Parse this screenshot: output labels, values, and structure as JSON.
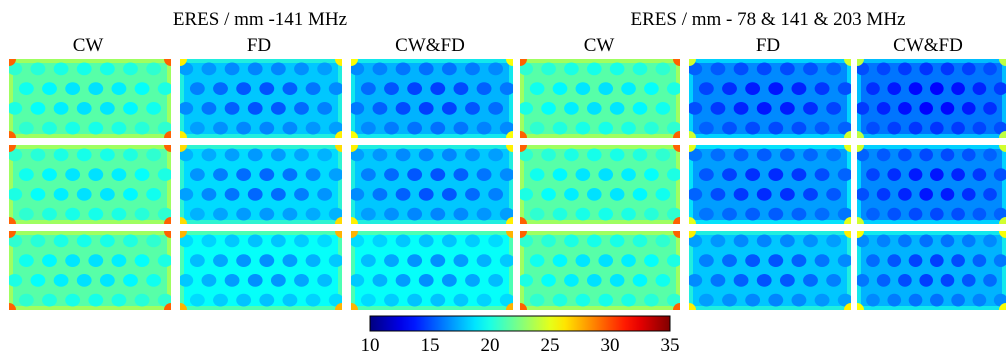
{
  "groups": [
    {
      "title": "ERES / mm -141 MHz",
      "columns": [
        "CW",
        "FD",
        "CW&FD"
      ],
      "mean_levels": [
        [
          21.5,
          18.0,
          17.5
        ],
        [
          21.5,
          18.5,
          18.0
        ],
        [
          21.5,
          19.5,
          19.5
        ]
      ]
    },
    {
      "title": "ERES / mm - 78 & 141 & 203 MHz",
      "columns": [
        "CW",
        "FD",
        "CW&FD"
      ],
      "mean_levels": [
        [
          21.5,
          16.5,
          16.0
        ],
        [
          21.5,
          17.0,
          16.5
        ],
        [
          21.5,
          18.0,
          17.5
        ]
      ]
    }
  ],
  "colorbar": {
    "colormap": "jet",
    "min": 10,
    "max": 35,
    "ticks": [
      "10",
      "15",
      "20",
      "25",
      "30",
      "35"
    ],
    "colors": [
      "#00008f",
      "#0000ff",
      "#00ffff",
      "#ffff00",
      "#ff0000",
      "#800000"
    ]
  }
}
